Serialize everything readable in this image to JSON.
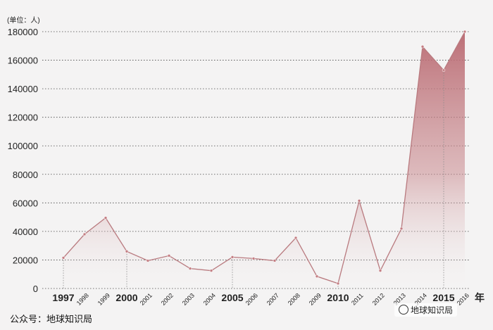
{
  "chart_data": {
    "type": "area",
    "unit_label": "(单位：人)",
    "x_suffix": "年",
    "x": [
      "1997",
      "1998",
      "1999",
      "2000",
      "2001",
      "2002",
      "2003",
      "2004",
      "2005",
      "2006",
      "2007",
      "2008",
      "2009",
      "2010",
      "2011",
      "2012",
      "2013",
      "2014",
      "2015",
      "2016"
    ],
    "major_years": [
      "1997",
      "2000",
      "2005",
      "2010",
      "2015"
    ],
    "values": [
      21500,
      38000,
      49500,
      26000,
      19500,
      23000,
      14000,
      12500,
      22000,
      21000,
      19500,
      35500,
      8500,
      3500,
      61500,
      12500,
      42000,
      169500,
      153000,
      180000
    ],
    "ylim": [
      0,
      180000
    ],
    "yticks": [
      0,
      20000,
      40000,
      60000,
      80000,
      100000,
      120000,
      140000,
      160000,
      180000
    ],
    "grid": "horizontal dotted",
    "colors": {
      "line": "#b97a7f",
      "fill_top": "#b96870",
      "fill_bottom": "#f4f3f3",
      "point": "#c47e83",
      "grid": "#444444"
    }
  },
  "footer": {
    "text": "公众号：地球知识局"
  },
  "badge": {
    "text": "地球知识局"
  }
}
